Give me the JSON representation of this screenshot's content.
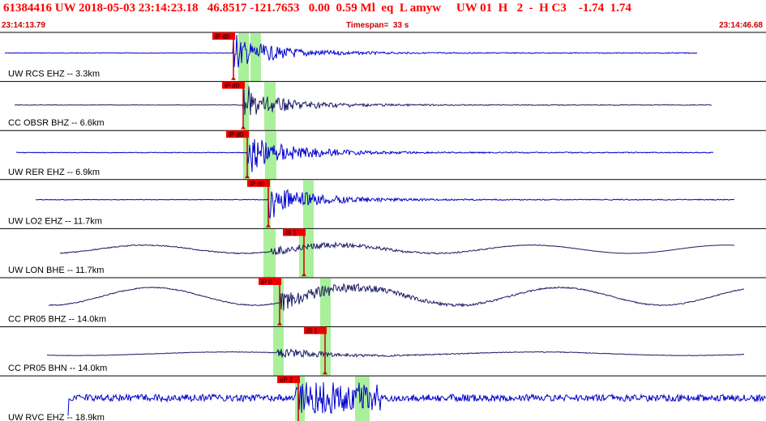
{
  "header": {
    "title": "61384416 UW 2018-05-03 23:14:23.18   46.8517 -121.7653   0.00  0.59 Ml  eq  L amyw     UW 01  H   2  -  H C3    -1.74  1.74",
    "start_time": "23:14:13.79",
    "timespan": "Timespan=  33 s",
    "end_time": "23:14:46.68"
  },
  "colors": {
    "header_text": "#ff0000",
    "time_text": "#cc0000",
    "trace_blue": "#0000cc",
    "trace_navy": "#1a1a66",
    "pick_window": "#aaf09a",
    "pick_label_bg": "#ee0000",
    "pick_tick": "#cc0000",
    "separator": "#000000"
  },
  "traces": [
    {
      "label": "UW RCS EHZ -- 3.3km",
      "style": "blue",
      "picks": [
        {
          "label": "iP d0",
          "t": 2.2
        }
      ],
      "windows": [
        2.4,
        3.5
      ]
    },
    {
      "label": "CC OBSR BHZ -- 6.6km",
      "style": "navy",
      "picks": [
        {
          "label": "iP d0",
          "t": 3.3
        }
      ],
      "windows": [
        3.5,
        4.9
      ]
    },
    {
      "label": "UW RER EHZ -- 6.9km",
      "style": "blue",
      "picks": [
        {
          "label": "iP d0",
          "t": 3.5
        }
      ],
      "windows": [
        3.8,
        5.5
      ]
    },
    {
      "label": "UW LO2 EHZ -- 11.7km",
      "style": "blue",
      "picks": [
        {
          "label": "iP d0",
          "t": 5.1
        }
      ],
      "windows": [
        5.5,
        7.4
      ]
    },
    {
      "label": "UW LON BHE -- 11.7km",
      "style": "navy",
      "picks": [
        {
          "label": "iS 1",
          "t": 6.6
        }
      ],
      "windows": [
        5.5,
        7.4
      ]
    },
    {
      "label": "CC PR05 BHZ -- 14.0km",
      "style": "navy",
      "picks": [
        {
          "label": "iP 0",
          "t": 5.7
        }
      ],
      "windows": [
        6.2,
        7.9
      ]
    },
    {
      "label": "CC PR05 BHN -- 14.0km",
      "style": "navy",
      "picks": [
        {
          "label": "iS 1",
          "t": 7.9
        }
      ],
      "windows": [
        6.2,
        7.9
      ]
    },
    {
      "label": "UW RVC EHZ -- 18.9km",
      "style": "blue",
      "picks": [
        {
          "label": "eP 2",
          "t": 6.8
        }
      ],
      "windows": [
        7.0,
        9.3
      ]
    }
  ]
}
